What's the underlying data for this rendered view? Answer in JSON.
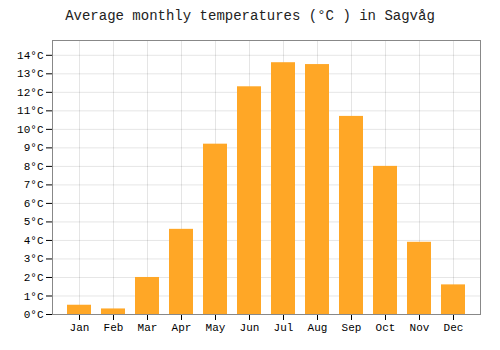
{
  "chart_data": {
    "type": "bar",
    "title": "Average monthly temperatures (°C ) in Sagvåg",
    "categories": [
      "Jan",
      "Feb",
      "Mar",
      "Apr",
      "May",
      "Jun",
      "Jul",
      "Aug",
      "Sep",
      "Oct",
      "Nov",
      "Dec"
    ],
    "values": [
      0.5,
      0.3,
      2.0,
      4.6,
      9.2,
      12.3,
      13.6,
      13.5,
      10.7,
      8.0,
      3.9,
      1.6
    ],
    "color": "#FFA726",
    "ylim": [
      0,
      14.8
    ],
    "yticks": [
      {
        "value": 0,
        "label": "0°C"
      },
      {
        "value": 1,
        "label": "1°C"
      },
      {
        "value": 2,
        "label": "2°C"
      },
      {
        "value": 3,
        "label": "3°C"
      },
      {
        "value": 4,
        "label": "4°C"
      },
      {
        "value": 5,
        "label": "5°C"
      },
      {
        "value": 6,
        "label": "6°C"
      },
      {
        "value": 7,
        "label": "7°C"
      },
      {
        "value": 8,
        "label": "8°C"
      },
      {
        "value": 9,
        "label": "9°C"
      },
      {
        "value": 10,
        "label": "10°C"
      },
      {
        "value": 11,
        "label": "11°C"
      },
      {
        "value": 12,
        "label": "12°C"
      },
      {
        "value": 13,
        "label": "13°C"
      },
      {
        "value": 14,
        "label": "14°C"
      }
    ],
    "grid": true
  }
}
